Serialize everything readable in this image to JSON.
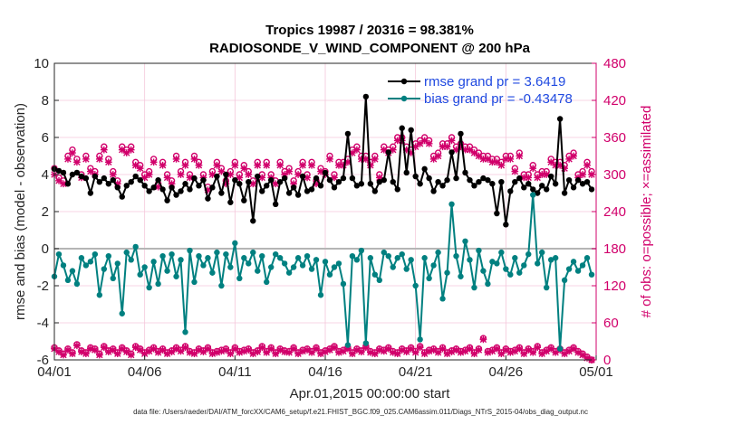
{
  "chart_data": {
    "type": "line",
    "title": "Tropics 19987 / 20316 = 98.381%",
    "subtitle": "RADIOSONDE_V_WIND_COMPONENT @ 200 hPa",
    "xlabel": "Apr.01,2015 00:00:00 start",
    "ylabel": "rmse and bias (model - observation)",
    "y2label": "# of obs: o=possible; ×=assimilated",
    "footnote": "data file: /Users/raeder/DAI/ATM_forcXX/CAM6_setup/f.e21.FHIST_BGC.f09_025.CAM6assim.011/Diags_NTrS_2015-04/obs_diag_output.nc",
    "xlim": [
      0,
      30
    ],
    "ylim": [
      -6,
      10
    ],
    "y2lim": [
      0,
      480
    ],
    "x_ticks": [
      0,
      5,
      10,
      15,
      20,
      25,
      30
    ],
    "x_tick_labels": [
      "04/01",
      "04/06",
      "04/11",
      "04/16",
      "04/21",
      "04/26",
      "05/01"
    ],
    "y_ticks": [
      -6,
      -4,
      -2,
      0,
      2,
      4,
      6,
      8,
      10
    ],
    "y2_ticks": [
      0,
      60,
      120,
      180,
      240,
      300,
      360,
      420,
      480
    ],
    "x": [
      0.0,
      0.25,
      0.5,
      0.75,
      1.0,
      1.25,
      1.5,
      1.75,
      2.0,
      2.25,
      2.5,
      2.75,
      3.0,
      3.25,
      3.5,
      3.75,
      4.0,
      4.25,
      4.5,
      4.75,
      5.0,
      5.25,
      5.5,
      5.75,
      6.0,
      6.25,
      6.5,
      6.75,
      7.0,
      7.25,
      7.5,
      7.75,
      8.0,
      8.25,
      8.5,
      8.75,
      9.0,
      9.25,
      9.5,
      9.75,
      10.0,
      10.25,
      10.5,
      10.75,
      11.0,
      11.25,
      11.5,
      11.75,
      12.0,
      12.25,
      12.5,
      12.75,
      13.0,
      13.25,
      13.5,
      13.75,
      14.0,
      14.25,
      14.5,
      14.75,
      15.0,
      15.25,
      15.5,
      15.75,
      16.0,
      16.25,
      16.5,
      16.75,
      17.0,
      17.25,
      17.5,
      17.75,
      18.0,
      18.25,
      18.5,
      18.75,
      19.0,
      19.25,
      19.5,
      19.75,
      20.0,
      20.25,
      20.5,
      20.75,
      21.0,
      21.25,
      21.5,
      21.75,
      22.0,
      22.25,
      22.5,
      22.75,
      23.0,
      23.25,
      23.5,
      23.75,
      24.0,
      24.25,
      24.5,
      24.75,
      25.0,
      25.25,
      25.5,
      25.75,
      26.0,
      26.25,
      26.5,
      26.75,
      27.0,
      27.25,
      27.5,
      27.75,
      28.0,
      28.25,
      28.5,
      28.75,
      29.0,
      29.25,
      29.5,
      29.75
    ],
    "series": [
      {
        "name": "rmse grand pr = 3.6419",
        "color": "#000000",
        "axis": "left",
        "values": [
          4.3,
          4.2,
          4.1,
          3.5,
          4.0,
          4.1,
          3.9,
          3.8,
          3.0,
          3.9,
          3.6,
          3.8,
          3.5,
          3.7,
          3.3,
          2.8,
          3.4,
          3.6,
          3.9,
          3.7,
          3.4,
          3.1,
          3.3,
          3.7,
          3.2,
          2.6,
          3.3,
          2.9,
          3.1,
          3.5,
          3.2,
          3.8,
          3.4,
          3.7,
          2.7,
          3.3,
          3.9,
          3.0,
          4.0,
          2.5,
          3.7,
          3.5,
          2.6,
          3.6,
          1.5,
          3.9,
          3.1,
          3.4,
          3.7,
          2.4,
          3.6,
          3.8,
          3.0,
          3.3,
          2.9,
          3.9,
          3.1,
          3.2,
          3.8,
          3.4,
          4.1,
          3.7,
          3.3,
          3.6,
          3.8,
          6.2,
          3.8,
          3.4,
          3.5,
          8.2,
          3.5,
          3.1,
          3.6,
          3.7,
          5.2,
          3.6,
          3.2,
          6.5,
          4.1,
          6.4,
          3.9,
          3.5,
          4.3,
          3.8,
          3.1,
          3.6,
          3.4,
          3.7,
          5.2,
          3.8,
          6.2,
          4.1,
          3.7,
          3.4,
          3.6,
          3.8,
          3.7,
          3.5,
          1.9,
          3.6,
          1.3,
          3.1,
          3.6,
          3.8,
          3.3,
          3.5,
          3.2,
          3.0,
          3.4,
          3.2,
          3.9,
          3.5,
          7.0,
          3.0,
          3.7,
          3.3,
          3.7,
          3.5,
          3.6,
          3.2
        ]
      },
      {
        "name": "bias grand pr = -0.43478",
        "color": "#008080",
        "axis": "left",
        "values": [
          -1.5,
          -0.3,
          -0.9,
          -1.7,
          -1.2,
          -1.9,
          -0.5,
          -0.9,
          -0.7,
          -0.3,
          -2.5,
          -1.1,
          -0.4,
          -1.6,
          -0.8,
          -3.5,
          -0.2,
          -0.6,
          0.1,
          -1.4,
          -1.0,
          -2.1,
          -0.7,
          -1.9,
          -0.4,
          -1.2,
          -0.3,
          -1.5,
          -0.6,
          -4.5,
          -0.1,
          -1.8,
          -0.4,
          -0.9,
          -0.5,
          -1.3,
          -0.2,
          -2.0,
          -0.3,
          -1.0,
          0.3,
          -1.6,
          -0.5,
          -0.8,
          -0.2,
          -1.2,
          -0.4,
          -1.8,
          -1.0,
          -0.3,
          -0.5,
          -0.8,
          -1.3,
          -1.0,
          -0.5,
          -0.9,
          -0.4,
          -1.1,
          -0.6,
          -2.5,
          -0.7,
          -1.4,
          -1.0,
          -0.8,
          -1.9,
          -5.2,
          -0.4,
          -0.6,
          -0.1,
          -5.1,
          -0.5,
          -1.4,
          -1.7,
          -0.2,
          -0.4,
          -1.0,
          -0.5,
          -0.3,
          -1.1,
          -0.6,
          -2.0,
          -4.9,
          -0.5,
          -1.6,
          -0.9,
          -0.2,
          -2.7,
          -1.3,
          2.4,
          -0.4,
          -1.5,
          0.4,
          -0.6,
          -2.1,
          -0.1,
          -1.2,
          -1.9,
          -0.7,
          -0.8,
          -0.2,
          -1.1,
          -1.4,
          -0.5,
          -1.3,
          -0.9,
          -0.3,
          2.9,
          -0.8,
          -0.2,
          -2.1,
          -0.6,
          -0.5,
          -5.4,
          -1.7,
          -1.1,
          -0.7,
          -1.2,
          -0.9,
          -0.5,
          -1.4
        ]
      }
    ],
    "obs_possible": [
      310,
      295,
      290,
      330,
      340,
      325,
      300,
      330,
      310,
      305,
      330,
      345,
      325,
      305,
      290,
      345,
      340,
      345,
      320,
      315,
      300,
      305,
      325,
      285,
      320,
      300,
      290,
      330,
      305,
      320,
      300,
      330,
      320,
      300,
      280,
      305,
      320,
      310,
      290,
      305,
      320,
      300,
      315,
      305,
      290,
      320,
      300,
      320,
      300,
      290,
      320,
      305,
      310,
      290,
      305,
      320,
      300,
      320,
      290,
      310,
      305,
      330,
      300,
      320,
      320,
      325,
      340,
      345,
      330,
      330,
      320,
      330,
      300,
      345,
      340,
      345,
      360,
      360,
      345,
      340,
      350,
      355,
      360,
      355,
      330,
      335,
      350,
      350,
      360,
      345,
      350,
      345,
      345,
      340,
      335,
      330,
      330,
      325,
      325,
      320,
      330,
      330,
      310,
      335,
      300,
      300,
      315,
      300,
      305,
      305,
      325,
      320,
      320,
      315,
      330,
      335,
      300,
      305,
      320,
      305
    ],
    "obs_assimilated": [
      300,
      290,
      285,
      325,
      335,
      320,
      295,
      325,
      305,
      300,
      325,
      340,
      320,
      300,
      285,
      340,
      335,
      340,
      315,
      310,
      295,
      300,
      320,
      280,
      315,
      295,
      285,
      325,
      300,
      315,
      295,
      325,
      315,
      295,
      275,
      300,
      315,
      305,
      285,
      300,
      315,
      295,
      310,
      300,
      285,
      315,
      295,
      315,
      295,
      285,
      315,
      300,
      305,
      285,
      300,
      315,
      295,
      315,
      285,
      305,
      300,
      325,
      295,
      315,
      315,
      320,
      335,
      340,
      325,
      325,
      315,
      325,
      295,
      340,
      335,
      340,
      355,
      355,
      340,
      335,
      345,
      350,
      355,
      350,
      325,
      330,
      345,
      345,
      355,
      340,
      345,
      340,
      340,
      335,
      330,
      325,
      325,
      320,
      320,
      315,
      325,
      325,
      305,
      330,
      295,
      295,
      310,
      295,
      300,
      300,
      320,
      315,
      315,
      310,
      325,
      330,
      295,
      300,
      315,
      300
    ],
    "obs_low_possible": [
      20,
      15,
      10,
      18,
      12,
      25,
      15,
      12,
      20,
      18,
      10,
      22,
      15,
      18,
      12,
      20,
      15,
      10,
      22,
      18,
      12,
      16,
      20,
      14,
      18,
      12,
      15,
      20,
      16,
      22,
      14,
      12,
      18,
      15,
      20,
      12,
      14,
      16,
      18,
      12,
      20,
      14,
      16,
      18,
      12,
      15,
      22,
      14,
      20,
      12,
      18,
      15,
      14,
      20,
      12,
      16,
      18,
      14,
      20,
      12,
      15,
      18,
      22,
      14,
      16,
      20,
      12,
      18,
      15,
      22,
      14,
      12,
      18,
      16,
      20,
      14,
      12,
      18,
      15,
      20,
      14,
      22,
      12,
      16,
      18,
      14,
      20,
      12,
      15,
      18,
      14,
      16,
      20,
      12,
      18,
      35,
      14,
      16,
      20,
      12,
      18,
      14,
      16,
      20,
      12,
      18,
      14,
      22,
      12,
      16,
      20,
      14,
      18,
      12,
      16,
      20,
      14,
      10,
      5,
      0
    ],
    "obs_low_assimilated": [
      18,
      13,
      8,
      16,
      10,
      23,
      13,
      10,
      18,
      16,
      8,
      20,
      13,
      16,
      10,
      18,
      13,
      8,
      20,
      16,
      10,
      14,
      18,
      12,
      16,
      10,
      13,
      18,
      14,
      20,
      12,
      10,
      16,
      13,
      18,
      10,
      12,
      14,
      16,
      10,
      18,
      12,
      14,
      16,
      10,
      13,
      20,
      12,
      18,
      10,
      16,
      13,
      12,
      18,
      10,
      14,
      16,
      12,
      18,
      10,
      13,
      16,
      20,
      12,
      14,
      18,
      10,
      16,
      13,
      20,
      12,
      10,
      16,
      14,
      18,
      12,
      10,
      16,
      13,
      18,
      12,
      20,
      10,
      14,
      16,
      12,
      18,
      10,
      13,
      16,
      12,
      14,
      18,
      10,
      16,
      33,
      12,
      14,
      18,
      10,
      16,
      12,
      14,
      18,
      10,
      16,
      12,
      20,
      10,
      14,
      18,
      12,
      16,
      10,
      14,
      18,
      12,
      8,
      3,
      0
    ],
    "zero_line": 0,
    "legend_location": "top-right"
  }
}
